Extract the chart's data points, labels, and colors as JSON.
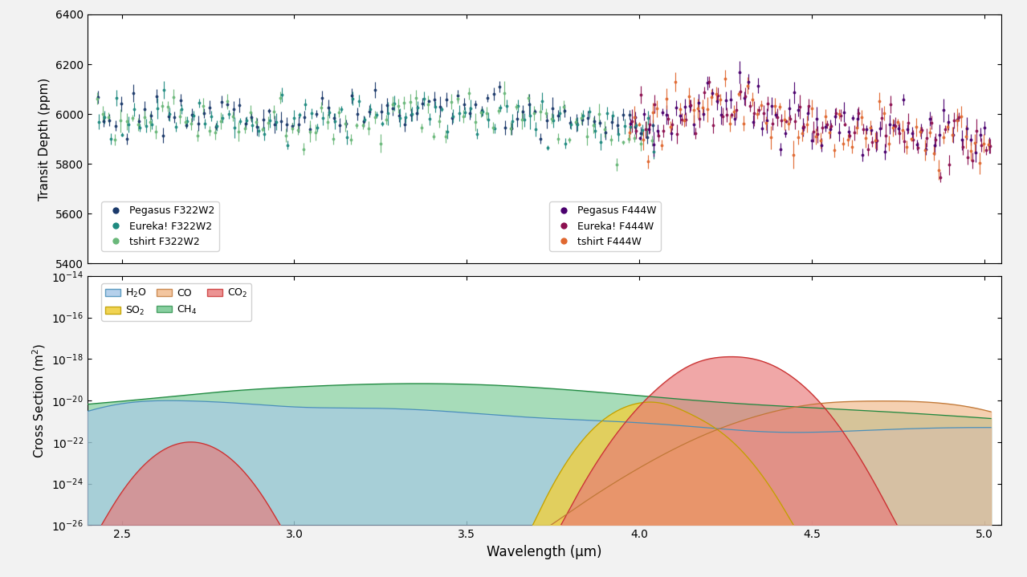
{
  "top_panel": {
    "ylim": [
      5400,
      6400
    ],
    "yticks": [
      5400,
      5600,
      5800,
      6000,
      6200,
      6400
    ],
    "ylabel": "Transit Depth (ppm)",
    "xlim": [
      2.4,
      5.05
    ]
  },
  "bottom_panel": {
    "ylabel": "Cross Section (m²)",
    "xlim": [
      2.4,
      5.05
    ],
    "ylim_low": 1e-26,
    "ylim_high": 1e-14
  },
  "xlabel": "Wavelength (μm)",
  "series_f322w2": {
    "pegasus": {
      "color": "#1b3a6b",
      "label": "Pegasus F322W2"
    },
    "eureka": {
      "color": "#1f8a80",
      "label": "Eureka! F322W2"
    },
    "tshirt": {
      "color": "#6ab87a",
      "label": "tshirt F322W2"
    }
  },
  "series_f444w": {
    "pegasus": {
      "color": "#4a006e",
      "label": "Pegasus F444W"
    },
    "eureka": {
      "color": "#8c1050",
      "label": "Eureka! F444W"
    },
    "tshirt": {
      "color": "#e06830",
      "label": "tshirt F444W"
    }
  },
  "mol_h2o": {
    "fc": "#a8c8e8",
    "ec": "#4a90b8",
    "alpha": 0.65,
    "label": "H$_2$O"
  },
  "mol_ch4": {
    "fc": "#60c080",
    "ec": "#208840",
    "alpha": 0.55,
    "label": "CH$_4$"
  },
  "mol_so2": {
    "fc": "#f0d040",
    "ec": "#c0a000",
    "alpha": 0.8,
    "label": "SO$_2$"
  },
  "mol_co2": {
    "fc": "#e87878",
    "ec": "#c83030",
    "alpha": 0.65,
    "label": "CO$_2$"
  },
  "mol_co": {
    "fc": "#f0b888",
    "ec": "#c07838",
    "alpha": 0.65,
    "label": "CO"
  },
  "bg_color": "#f2f2f2"
}
